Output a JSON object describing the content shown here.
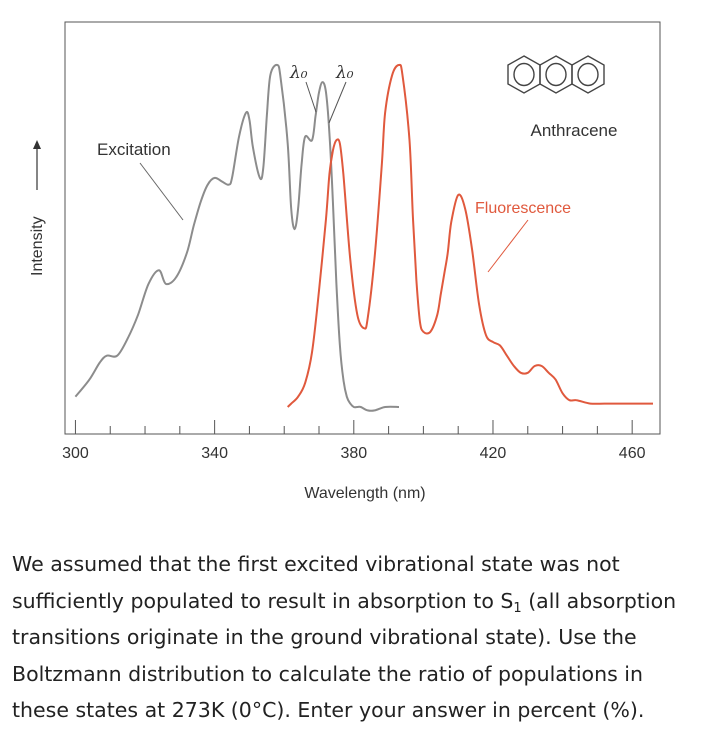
{
  "chart_data": {
    "type": "line",
    "title": "",
    "xlabel": "Wavelength (nm)",
    "ylabel": "Intensity",
    "xlim": [
      297,
      468
    ],
    "ylim": [
      0,
      1
    ],
    "xticks": [
      300,
      340,
      380,
      420,
      460
    ],
    "series": [
      {
        "name": "Excitation",
        "color": "#8c8c8c",
        "x": [
          300,
          304,
          307,
          309,
          312,
          315,
          318,
          321,
          324,
          326,
          329,
          332,
          334,
          336,
          338,
          340,
          342,
          344,
          345,
          347,
          349,
          350,
          351,
          353,
          354,
          355,
          356,
          358,
          359,
          361,
          362,
          363,
          364,
          365,
          366,
          368,
          369,
          370,
          371,
          372,
          373,
          374,
          375,
          376,
          377,
          378,
          379,
          380,
          381,
          382,
          384,
          386,
          389,
          393
        ],
        "values": [
          0.03,
          0.08,
          0.13,
          0.15,
          0.15,
          0.2,
          0.27,
          0.36,
          0.4,
          0.36,
          0.38,
          0.45,
          0.53,
          0.6,
          0.65,
          0.67,
          0.66,
          0.65,
          0.67,
          0.79,
          0.86,
          0.84,
          0.76,
          0.67,
          0.7,
          0.85,
          0.97,
          1.0,
          0.96,
          0.77,
          0.58,
          0.52,
          0.58,
          0.71,
          0.79,
          0.78,
          0.85,
          0.92,
          0.95,
          0.92,
          0.8,
          0.6,
          0.36,
          0.18,
          0.08,
          0.03,
          0.01,
          0.0,
          0.0,
          0.0,
          -0.01,
          -0.01,
          0.0,
          0.0
        ]
      },
      {
        "name": "Fluorescence",
        "color": "#e0593d",
        "x": [
          361,
          362,
          364,
          366,
          368,
          370,
          372,
          373,
          374,
          375,
          376,
          377,
          379,
          381,
          383,
          384,
          386,
          388,
          389,
          391,
          393,
          394,
          396,
          397,
          398,
          399,
          400,
          402,
          404,
          405,
          406,
          407,
          408,
          410,
          412,
          414,
          416,
          418,
          420,
          422,
          424,
          426,
          428,
          430,
          432,
          434,
          436,
          438,
          440,
          442,
          444,
          448,
          452,
          456,
          460,
          464,
          466
        ],
        "values": [
          0.0,
          0.01,
          0.03,
          0.07,
          0.16,
          0.34,
          0.55,
          0.68,
          0.75,
          0.78,
          0.77,
          0.68,
          0.43,
          0.27,
          0.23,
          0.26,
          0.44,
          0.7,
          0.86,
          0.97,
          1.0,
          0.97,
          0.78,
          0.55,
          0.37,
          0.25,
          0.22,
          0.22,
          0.27,
          0.33,
          0.39,
          0.45,
          0.54,
          0.62,
          0.58,
          0.46,
          0.3,
          0.21,
          0.19,
          0.18,
          0.15,
          0.12,
          0.1,
          0.1,
          0.12,
          0.12,
          0.1,
          0.08,
          0.04,
          0.02,
          0.02,
          0.01,
          0.01,
          0.01,
          0.01,
          0.01,
          0.01
        ]
      }
    ],
    "annotations": {
      "excitation_label": "Excitation",
      "fluorescence_label": "Fluorescence",
      "molecule_label": "Anthracene",
      "lambda_label": "λ₀"
    }
  },
  "question": {
    "text_1": "We assumed that the first excited vibrational state was not sufficiently populated to result in absorption to S",
    "subscript": "1",
    "text_2": " (all absorption transitions originate in the ground vibrational state). Use the Boltzmann distribution to calculate the ratio of populations in these states at 273K (0°C). Enter your answer in percent (%)."
  }
}
